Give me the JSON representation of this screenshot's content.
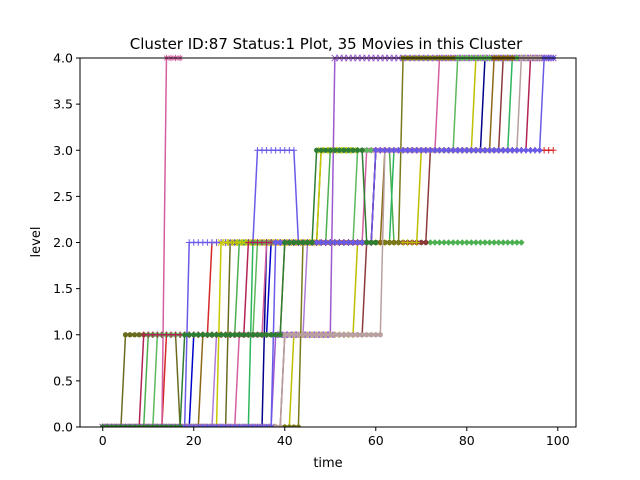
{
  "chart_data": {
    "type": "line",
    "title": "Cluster ID:87 Status:1 Plot, 35 Movies in this Cluster",
    "xlabel": "time",
    "ylabel": "level",
    "xlim": [
      -5,
      104
    ],
    "ylim": [
      0.0,
      4.0
    ],
    "x_ticks": [
      "0",
      "20",
      "40",
      "60",
      "80",
      "100"
    ],
    "x_tick_values": [
      0,
      20,
      40,
      60,
      80,
      100
    ],
    "y_ticks": [
      "0.0",
      "0.5",
      "1.0",
      "1.5",
      "2.0",
      "2.5",
      "3.0",
      "3.5",
      "4.0"
    ],
    "y_tick_values": [
      0.0,
      0.5,
      1.0,
      1.5,
      2.0,
      2.5,
      3.0,
      3.5,
      4.0
    ],
    "grid": false,
    "legend": "none",
    "series": [
      {
        "color": "#d62728",
        "marker": "+",
        "end": 99,
        "levels": [
          [
            0,
            0
          ],
          [
            14,
            1
          ],
          [
            24,
            2
          ],
          [
            60,
            3
          ]
        ]
      },
      {
        "color": "#6b6b1f",
        "marker": "o",
        "end": 48,
        "levels": [
          [
            0,
            0
          ],
          [
            5,
            1
          ],
          [
            17,
            0
          ],
          [
            28,
            2
          ],
          [
            48,
            3
          ]
        ]
      },
      {
        "color": "#d45fa0",
        "marker": "*",
        "end": 17,
        "levels": [
          [
            0,
            0
          ],
          [
            14,
            4
          ]
        ]
      },
      {
        "color": "#6a5ae8",
        "marker": "+",
        "end": 45,
        "levels": [
          [
            0,
            0
          ],
          [
            19,
            2
          ],
          [
            34,
            3
          ],
          [
            43,
            2
          ]
        ]
      },
      {
        "color": "#0000cc",
        "marker": "d",
        "end": 59,
        "levels": [
          [
            0,
            0
          ],
          [
            20,
            1
          ],
          [
            37,
            2
          ]
        ]
      },
      {
        "color": "#4caf50",
        "marker": "d",
        "end": 92,
        "levels": [
          [
            0,
            0
          ],
          [
            10,
            1
          ],
          [
            30,
            2
          ],
          [
            50,
            3
          ],
          [
            64,
            2
          ]
        ]
      },
      {
        "color": "#b07ad8",
        "marker": "o",
        "end": 65,
        "levels": [
          [
            0,
            0
          ],
          [
            25,
            1
          ],
          [
            45,
            2
          ]
        ]
      },
      {
        "color": "#c8c800",
        "marker": "x",
        "end": 55,
        "levels": [
          [
            0,
            0
          ],
          [
            26,
            2
          ],
          [
            48,
            3
          ]
        ]
      },
      {
        "color": "#2db55d",
        "marker": "o",
        "end": 98,
        "levels": [
          [
            0,
            0
          ],
          [
            33,
            2
          ],
          [
            64,
            3
          ],
          [
            90,
            4
          ]
        ]
      },
      {
        "color": "#8b3a3a",
        "marker": "o",
        "end": 95,
        "levels": [
          [
            0,
            0
          ],
          [
            40,
            1
          ],
          [
            58,
            2
          ],
          [
            72,
            3
          ],
          [
            88,
            4
          ]
        ]
      },
      {
        "color": "#00008b",
        "marker": "+",
        "end": 98,
        "levels": [
          [
            0,
            0
          ],
          [
            36,
            2
          ],
          [
            60,
            3
          ],
          [
            84,
            4
          ]
        ]
      },
      {
        "color": "#d45fa0",
        "marker": "*",
        "end": 95,
        "levels": [
          [
            0,
            0
          ],
          [
            30,
            1
          ],
          [
            36,
            2
          ],
          [
            58,
            3
          ],
          [
            74,
            4
          ]
        ]
      },
      {
        "color": "#9b59d0",
        "marker": "x",
        "end": 99,
        "levels": [
          [
            0,
            0
          ],
          [
            38,
            1
          ],
          [
            51,
            4
          ]
        ]
      },
      {
        "color": "#bfbf00",
        "marker": "+",
        "end": 96,
        "levels": [
          [
            0,
            0
          ],
          [
            42,
            1
          ],
          [
            56,
            2
          ],
          [
            70,
            3
          ],
          [
            82,
            4
          ]
        ]
      },
      {
        "color": "#7a7a1a",
        "marker": "o",
        "end": 96,
        "levels": [
          [
            0,
            0
          ],
          [
            44,
            2
          ],
          [
            66,
            4
          ]
        ]
      },
      {
        "color": "#5cb85c",
        "marker": "d",
        "end": 96,
        "levels": [
          [
            0,
            0
          ],
          [
            12,
            1
          ],
          [
            34,
            2
          ],
          [
            56,
            3
          ],
          [
            78,
            4
          ]
        ]
      },
      {
        "color": "#8b6914",
        "marker": "o",
        "end": 90,
        "levels": [
          [
            0,
            0
          ],
          [
            22,
            1
          ],
          [
            40,
            2
          ],
          [
            62,
            3
          ],
          [
            86,
            4
          ]
        ]
      },
      {
        "color": "#b22255",
        "marker": "+",
        "end": 99,
        "levels": [
          [
            0,
            0
          ],
          [
            9,
            1
          ],
          [
            32,
            2
          ],
          [
            60,
            3
          ],
          [
            94,
            4
          ]
        ]
      },
      {
        "color": "#b8a0a0",
        "marker": "o",
        "end": 97,
        "levels": [
          [
            0,
            0
          ],
          [
            40,
            1
          ],
          [
            62,
            3
          ],
          [
            92,
            4
          ]
        ]
      },
      {
        "color": "#6a5ae8",
        "marker": "d",
        "end": 99,
        "levels": [
          [
            0,
            0
          ],
          [
            38,
            2
          ],
          [
            60,
            3
          ],
          [
            97,
            4
          ]
        ]
      },
      {
        "color": "#2e7d32",
        "marker": "o",
        "end": 60,
        "levels": [
          [
            0,
            0
          ],
          [
            18,
            1
          ],
          [
            40,
            2
          ],
          [
            47,
            3
          ],
          [
            58,
            2
          ]
        ]
      }
    ]
  }
}
